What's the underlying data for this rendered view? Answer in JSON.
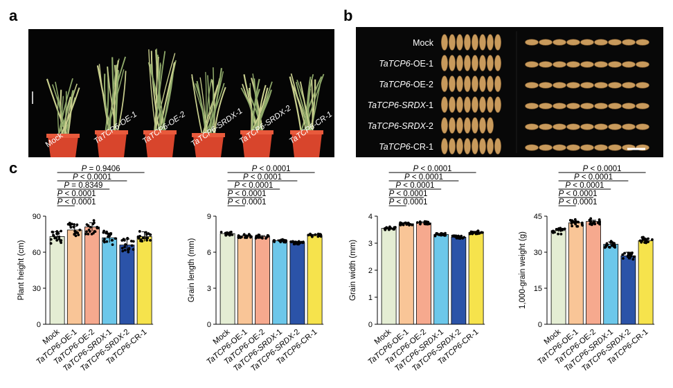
{
  "panels": {
    "a": "a",
    "b": "b",
    "c": "c"
  },
  "panel_a": {
    "plants": [
      "Mock",
      "TaTCP6-OE-1",
      "TaTCP6-OE-2",
      "TaTCP6-SRDX-1",
      "TaTCP6-SRDX-2",
      "TaTCP6-CR-1"
    ]
  },
  "panel_b": {
    "rows": [
      {
        "gene": "",
        "suffix": "Mock",
        "grains": 8
      },
      {
        "gene": "TaTCP6",
        "suffix": "-OE-1",
        "grains": 8
      },
      {
        "gene": "TaTCP6",
        "suffix": "-OE-2",
        "grains": 8
      },
      {
        "gene": "TaTCP6-SRDX",
        "suffix": "-1",
        "grains": 8
      },
      {
        "gene": "TaTCP6-SRDX",
        "suffix": "-2",
        "grains": 7
      },
      {
        "gene": "TaTCP6",
        "suffix": "-CR-1",
        "grains": 8
      }
    ]
  },
  "chart_data": [
    {
      "type": "bar",
      "title": "",
      "xlabel": "",
      "ylabel": "Plant height (cm)",
      "ylim": [
        0,
        90
      ],
      "yticks": [
        "0",
        "30",
        "60",
        "90"
      ],
      "categories": [
        "Mock",
        "TaTCP6-OE-1",
        "TaTCP6-OE-2",
        "TaTCP6-SRDX-1",
        "TaTCP6-SRDX-2",
        "TaTCP6-CR-1"
      ],
      "values": [
        73,
        78.5,
        81,
        72,
        66,
        73
      ],
      "errors": [
        4,
        3,
        3.5,
        4,
        5,
        4
      ],
      "spread": 6,
      "annotations": [
        "P = 0.9406",
        "P < 0.0001",
        "P = 0.8349",
        "P < 0.0001",
        "P < 0.0001"
      ]
    },
    {
      "type": "bar",
      "title": "",
      "xlabel": "",
      "ylabel": "Grain length (mm)",
      "ylim": [
        0,
        9
      ],
      "yticks": [
        "0",
        "3",
        "6",
        "9"
      ],
      "categories": [
        "Mock",
        "TaTCP6-OE-1",
        "TaTCP6-OE-2",
        "TaTCP6-SRDX-1",
        "TaTCP6-SRDX-2",
        "TaTCP6-CR-1"
      ],
      "values": [
        7.55,
        7.35,
        7.3,
        6.95,
        6.8,
        7.4
      ],
      "errors": [
        0.08,
        0.08,
        0.08,
        0.08,
        0.1,
        0.08
      ],
      "spread": 0.15,
      "annotations": [
        "P < 0.0001",
        "P < 0.0001",
        "P < 0.0001",
        "P < 0.0001",
        "P < 0.0001"
      ]
    },
    {
      "type": "bar",
      "title": "",
      "xlabel": "",
      "ylabel": "Grain width (mm)",
      "ylim": [
        0,
        4
      ],
      "yticks": [
        "0",
        "1",
        "2",
        "3",
        "4"
      ],
      "categories": [
        "Mock",
        "TaTCP6-OE-1",
        "TaTCP6-OE-2",
        "TaTCP6-SRDX-1",
        "TaTCP6-SRDX-2",
        "TaTCP6-CR-1"
      ],
      "values": [
        3.55,
        3.72,
        3.75,
        3.32,
        3.22,
        3.4
      ],
      "errors": [
        0.04,
        0.05,
        0.04,
        0.04,
        0.05,
        0.04
      ],
      "spread": 0.06,
      "annotations": [
        "P < 0.0001",
        "P < 0.0001",
        "P < 0.0001",
        "P < 0.0001",
        "P < 0.0001"
      ]
    },
    {
      "type": "bar",
      "title": "",
      "xlabel": "",
      "ylabel": "1,000-grain weight (g)",
      "ylim": [
        0,
        45
      ],
      "yticks": [
        "0",
        "15",
        "30",
        "45"
      ],
      "categories": [
        "Mock",
        "TaTCP6-OE-1",
        "TaTCP6-OE-2",
        "TaTCP6-SRDX-1",
        "TaTCP6-SRDX-2",
        "TaTCP6-CR-1"
      ],
      "values": [
        39,
        42.2,
        42.8,
        33.3,
        28.5,
        34.8
      ],
      "errors": [
        0.5,
        0.5,
        0.5,
        1,
        1.5,
        0.6
      ],
      "spread": 1.5,
      "annotations": [
        "P < 0.0001",
        "P < 0.0001",
        "P < 0.0001",
        "P < 0.0001",
        "P < 0.0001"
      ]
    }
  ],
  "colors": {
    "bars": [
      "#e4edd3",
      "#f9c597",
      "#f6a98e",
      "#6cc7ea",
      "#2b53a8",
      "#f6e34c"
    ],
    "dots": "#000000",
    "photo_bg": "#050505",
    "pot": "#d8452c",
    "grain": "#c89a5c"
  }
}
